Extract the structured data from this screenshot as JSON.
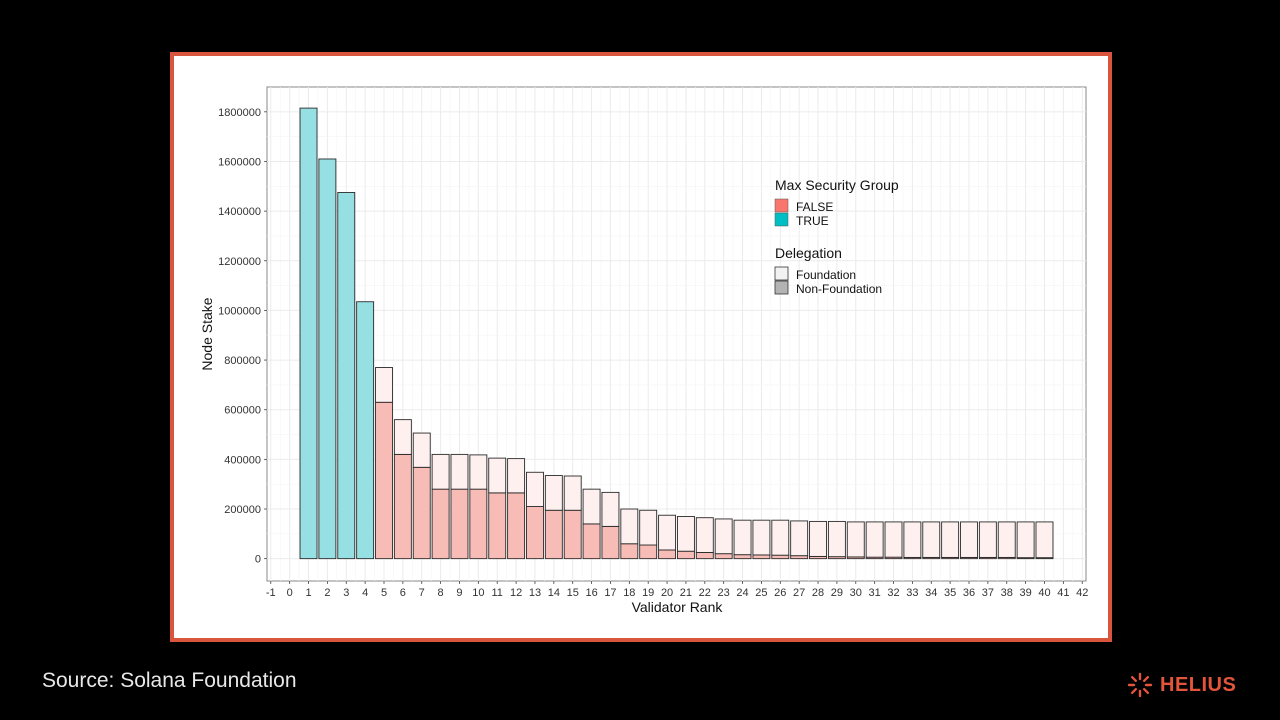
{
  "source": "Source: Solana Foundation",
  "brand": "HELIUS",
  "colors": {
    "frame": "#d9553d",
    "false_fill": "#f8bcb7",
    "true_fill": "#96dfe3",
    "foundation_fill": "#fdf0ef",
    "legend_false": "#f8766d",
    "legend_true": "#00bfc4",
    "legend_foundation": "#f2f2f2",
    "legend_nonfoundation": "#b3b3b3",
    "brand": "#e2553b"
  },
  "chart_data": {
    "type": "bar",
    "title": "",
    "xlabel": "Validator Rank",
    "ylabel": "Node Stake",
    "xlim": [
      -1,
      42
    ],
    "ylim": [
      0,
      1800000
    ],
    "grid": true,
    "x_ticks": [
      "-1",
      "0",
      "1",
      "2",
      "3",
      "4",
      "5",
      "6",
      "7",
      "8",
      "9",
      "10",
      "11",
      "12",
      "13",
      "14",
      "15",
      "16",
      "17",
      "18",
      "19",
      "20",
      "21",
      "22",
      "23",
      "24",
      "25",
      "26",
      "27",
      "28",
      "29",
      "30",
      "31",
      "32",
      "33",
      "34",
      "35",
      "36",
      "37",
      "38",
      "39",
      "40",
      "41",
      "42"
    ],
    "y_ticks": [
      "0",
      "200000",
      "400000",
      "600000",
      "800000",
      "1000000",
      "1200000",
      "1400000",
      "1600000",
      "1800000"
    ],
    "legend_position": "top-right",
    "legends": [
      {
        "title": "Max Security Group",
        "entries": [
          {
            "label": "FALSE",
            "color_key": "legend_false"
          },
          {
            "label": "TRUE",
            "color_key": "legend_true"
          }
        ]
      },
      {
        "title": "Delegation",
        "entries": [
          {
            "label": "Foundation",
            "color_key": "legend_foundation"
          },
          {
            "label": "Non-Foundation",
            "color_key": "legend_nonfoundation"
          }
        ]
      }
    ],
    "ranks": [
      1,
      2,
      3,
      4,
      5,
      6,
      7,
      8,
      9,
      10,
      11,
      12,
      13,
      14,
      15,
      16,
      17,
      18,
      19,
      20,
      21,
      22,
      23,
      24,
      25,
      26,
      27,
      28,
      29,
      30,
      31,
      32,
      33,
      34,
      35,
      36,
      37,
      38,
      39,
      40
    ],
    "max_security_group": [
      true,
      true,
      true,
      true,
      false,
      false,
      false,
      false,
      false,
      false,
      false,
      false,
      false,
      false,
      false,
      false,
      false,
      false,
      false,
      false,
      false,
      false,
      false,
      false,
      false,
      false,
      false,
      false,
      false,
      false,
      false,
      false,
      false,
      false,
      false,
      false,
      false,
      false,
      false,
      false
    ],
    "series": [
      {
        "name": "Non-Foundation",
        "values": [
          1815000,
          1610000,
          1475000,
          1035000,
          630000,
          420000,
          368000,
          280000,
          280000,
          280000,
          265000,
          265000,
          210000,
          195000,
          195000,
          140000,
          130000,
          60000,
          55000,
          35000,
          30000,
          25000,
          20000,
          16000,
          15000,
          14000,
          12000,
          9000,
          8000,
          7000,
          6000,
          6000,
          5000,
          5000,
          5000,
          5000,
          5000,
          5000,
          4000,
          4000
        ]
      },
      {
        "name": "Foundation",
        "values": [
          0,
          0,
          0,
          0,
          140000,
          140000,
          138000,
          140000,
          140000,
          138000,
          140000,
          138000,
          138000,
          140000,
          138000,
          140000,
          137000,
          140000,
          140000,
          140000,
          140000,
          140000,
          140000,
          139000,
          140000,
          141000,
          140000,
          141000,
          142000,
          141000,
          142000,
          142000,
          143000,
          143000,
          143000,
          143000,
          143000,
          143000,
          144000,
          144000
        ]
      }
    ]
  }
}
